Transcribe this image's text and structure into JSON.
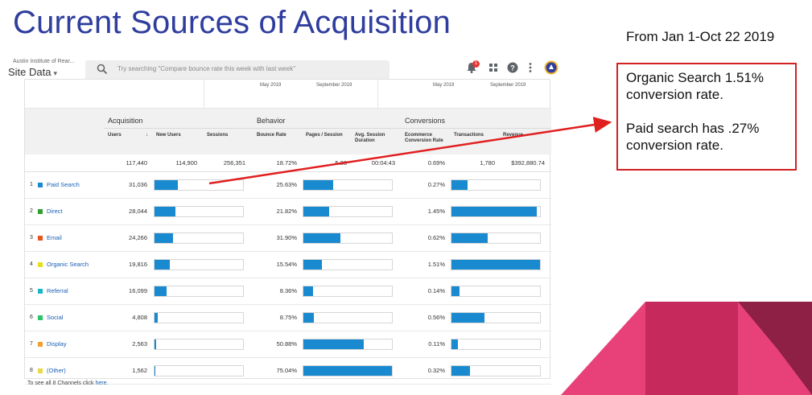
{
  "slide": {
    "title": "Current Sources of Acquisition",
    "date_range": "From Jan 1-Oct 22 2019"
  },
  "ga_ui": {
    "account": "Austin Institute of Rear...",
    "view": "Site Data",
    "search_placeholder": "Try searching \"Compare bounce rate this week with last week\"",
    "notification_count": "1",
    "compare_labels": [
      "May 2019",
      "September 2019",
      "May 2019",
      "September 2019"
    ],
    "groups": {
      "acquisition": "Acquisition",
      "behavior": "Behavior",
      "conversions": "Conversions"
    },
    "columns": {
      "users": "Users",
      "new_users": "New Users",
      "sessions": "Sessions",
      "bounce_rate": "Bounce Rate",
      "pages_session": "Pages / Session",
      "avg_duration": "Avg. Session Duration",
      "ecom_rate": "Ecommerce Conversion Rate",
      "transactions": "Transactions",
      "revenue": "Revenue"
    },
    "totals": {
      "users": "117,440",
      "new_users": "114,900",
      "sessions": "256,351",
      "bounce_rate": "18.72%",
      "pages_session": "5.88",
      "avg_duration": "00:04:43",
      "ecom_rate": "0.69%",
      "transactions": "1,780",
      "revenue": "$392,880.74"
    },
    "rows": [
      {
        "num": "1",
        "channel": "Paid Search",
        "color": "#1a8ad0",
        "users": "31,036",
        "users_frac": 0.26,
        "bounce": "25.63%",
        "bounce_frac": 0.34,
        "conv": "0.27%",
        "conv_frac": 0.18
      },
      {
        "num": "2",
        "channel": "Direct",
        "color": "#2e9e2e",
        "users": "28,044",
        "users_frac": 0.24,
        "bounce": "21.82%",
        "bounce_frac": 0.29,
        "conv": "1.45%",
        "conv_frac": 0.96
      },
      {
        "num": "3",
        "channel": "Email",
        "color": "#e8541e",
        "users": "24,266",
        "users_frac": 0.21,
        "bounce": "31.90%",
        "bounce_frac": 0.42,
        "conv": "0.62%",
        "conv_frac": 0.41
      },
      {
        "num": "4",
        "channel": "Organic Search",
        "color": "#e6df1a",
        "users": "19,816",
        "users_frac": 0.17,
        "bounce": "15.54%",
        "bounce_frac": 0.21,
        "conv": "1.51%",
        "conv_frac": 1.0
      },
      {
        "num": "5",
        "channel": "Referral",
        "color": "#19b7c9",
        "users": "16,099",
        "users_frac": 0.14,
        "bounce": "8.36%",
        "bounce_frac": 0.11,
        "conv": "0.14%",
        "conv_frac": 0.09
      },
      {
        "num": "6",
        "channel": "Social",
        "color": "#2cc46b",
        "users": "4,808",
        "users_frac": 0.04,
        "bounce": "8.75%",
        "bounce_frac": 0.12,
        "conv": "0.56%",
        "conv_frac": 0.37
      },
      {
        "num": "7",
        "channel": "Display",
        "color": "#f0a030",
        "users": "2,563",
        "users_frac": 0.02,
        "bounce": "50.88%",
        "bounce_frac": 0.68,
        "conv": "0.11%",
        "conv_frac": 0.07
      },
      {
        "num": "8",
        "channel": "(Other)",
        "color": "#e8d84a",
        "users": "1,562",
        "users_frac": 0.013,
        "bounce": "75.04%",
        "bounce_frac": 1.0,
        "conv": "0.32%",
        "conv_frac": 0.21
      }
    ],
    "footnote_prefix": "To see all 8 Channels click",
    "footnote_link": "here."
  },
  "callout": {
    "line1": "Organic Search 1.51% conversion rate.",
    "line2": "Paid search has .27% conversion rate."
  },
  "colors": {
    "title": "#2f3e9e",
    "bar": "#1a8ad0",
    "callout_border": "#d32020",
    "decor_pink": "#e8417a",
    "decor_magenta": "#c62a5c",
    "decor_wine": "#8e1f45"
  }
}
